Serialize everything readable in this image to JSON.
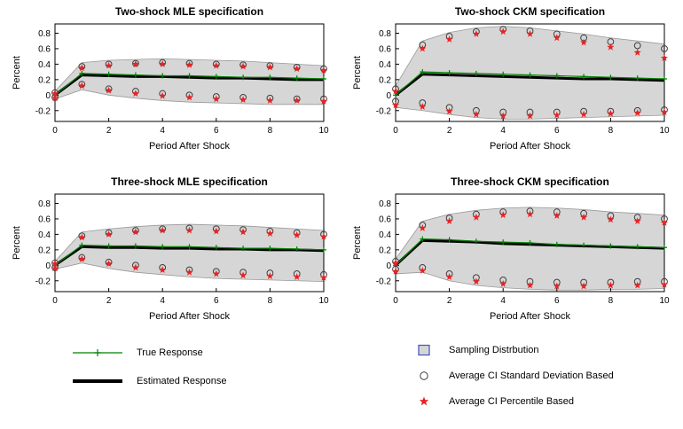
{
  "figure": {
    "xticks": [
      0,
      2,
      4,
      6,
      8,
      10
    ],
    "yticks": [
      -0.2,
      0,
      0.2,
      0.4,
      0.6,
      0.8
    ],
    "legend_position": "bottom"
  },
  "style": {
    "true_color": "#008000",
    "estimated_color": "#000000",
    "band_fill": "#d6d6d6",
    "band_edge": "#999999",
    "circle_color": "#404040",
    "star_color": "#e62325",
    "square_border": "#4050c0",
    "axis_color": "#000000"
  },
  "legend": {
    "true_response": "True Response",
    "estimated_response": "Estimated Response",
    "sampling_distribution": "Sampling Distrbution",
    "ci_sd": "Average CI Standard Deviation Based",
    "ci_pct": "Average CI Percentile Based"
  },
  "chart_data": [
    {
      "type": "line",
      "title": "Two-shock MLE specification",
      "xlabel": "Period After Shock",
      "ylabel": "Percent",
      "x": [
        0,
        1,
        2,
        3,
        4,
        5,
        6,
        7,
        8,
        9,
        10
      ],
      "xlim": [
        0,
        10
      ],
      "ylim": [
        -0.34,
        0.92
      ],
      "band": {
        "name": "Sampling Distribution",
        "upper": [
          0.05,
          0.42,
          0.45,
          0.46,
          0.47,
          0.46,
          0.45,
          0.44,
          0.42,
          0.4,
          0.38
        ],
        "lower": [
          -0.05,
          0.07,
          0.0,
          -0.04,
          -0.07,
          -0.09,
          -0.1,
          -0.11,
          -0.12,
          -0.12,
          -0.12
        ]
      },
      "series": [
        {
          "role": "true",
          "name": "True Response",
          "values": [
            0,
            0.28,
            0.27,
            0.26,
            0.25,
            0.25,
            0.24,
            0.23,
            0.23,
            0.22,
            0.21
          ]
        },
        {
          "role": "estimated",
          "name": "Estimated Response",
          "values": [
            0,
            0.26,
            0.25,
            0.24,
            0.24,
            0.23,
            0.22,
            0.22,
            0.21,
            0.2,
            0.2
          ]
        },
        {
          "role": "ci_sd_upper",
          "name": "Average CI Standard Deviation Based (upper)",
          "values": [
            0.03,
            0.37,
            0.4,
            0.41,
            0.42,
            0.41,
            0.4,
            0.39,
            0.38,
            0.36,
            0.34
          ]
        },
        {
          "role": "ci_sd_lower",
          "name": "Average CI Standard Deviation Based (lower)",
          "values": [
            -0.03,
            0.14,
            0.08,
            0.05,
            0.02,
            0.0,
            -0.02,
            -0.03,
            -0.04,
            -0.05,
            -0.05
          ]
        },
        {
          "role": "ci_pct_upper",
          "name": "Average CI Percentile Based (upper)",
          "values": [
            0.02,
            0.35,
            0.38,
            0.4,
            0.4,
            0.39,
            0.38,
            0.37,
            0.36,
            0.34,
            0.32
          ]
        },
        {
          "role": "ci_pct_lower",
          "name": "Average CI Percentile Based (lower)",
          "values": [
            -0.04,
            0.12,
            0.06,
            0.02,
            -0.01,
            -0.03,
            -0.05,
            -0.06,
            -0.07,
            -0.07,
            -0.08
          ]
        }
      ]
    },
    {
      "type": "line",
      "title": "Two-shock CKM specification",
      "xlabel": "Period After Shock",
      "ylabel": "Percent",
      "x": [
        0,
        1,
        2,
        3,
        4,
        5,
        6,
        7,
        8,
        9,
        10
      ],
      "xlim": [
        0,
        10
      ],
      "ylim": [
        -0.34,
        0.92
      ],
      "band": {
        "name": "Sampling Distribution",
        "upper": [
          0.12,
          0.7,
          0.81,
          0.87,
          0.89,
          0.87,
          0.83,
          0.79,
          0.74,
          0.7,
          0.66
        ],
        "lower": [
          -0.16,
          -0.2,
          -0.25,
          -0.29,
          -0.31,
          -0.31,
          -0.3,
          -0.29,
          -0.28,
          -0.27,
          -0.26
        ]
      },
      "series": [
        {
          "role": "true",
          "name": "True Response",
          "values": [
            0,
            0.3,
            0.29,
            0.28,
            0.27,
            0.26,
            0.25,
            0.24,
            0.23,
            0.22,
            0.21
          ]
        },
        {
          "role": "estimated",
          "name": "Estimated Response",
          "values": [
            0,
            0.27,
            0.26,
            0.25,
            0.24,
            0.23,
            0.22,
            0.21,
            0.21,
            0.2,
            0.19
          ]
        },
        {
          "role": "ci_sd_upper",
          "name": "Average CI Standard Deviation Based (upper)",
          "values": [
            0.08,
            0.65,
            0.76,
            0.82,
            0.85,
            0.83,
            0.79,
            0.74,
            0.69,
            0.64,
            0.6
          ]
        },
        {
          "role": "ci_sd_lower",
          "name": "Average CI Standard Deviation Based (lower)",
          "values": [
            -0.08,
            -0.1,
            -0.16,
            -0.2,
            -0.22,
            -0.22,
            -0.22,
            -0.21,
            -0.21,
            -0.2,
            -0.19
          ]
        },
        {
          "role": "ci_pct_upper",
          "name": "Average CI Percentile Based (upper)",
          "values": [
            0.05,
            0.6,
            0.72,
            0.79,
            0.82,
            0.79,
            0.74,
            0.68,
            0.62,
            0.55,
            0.48
          ]
        },
        {
          "role": "ci_pct_lower",
          "name": "Average CI Percentile Based (lower)",
          "values": [
            -0.13,
            -0.15,
            -0.21,
            -0.25,
            -0.27,
            -0.27,
            -0.26,
            -0.25,
            -0.24,
            -0.23,
            -0.22
          ]
        }
      ]
    },
    {
      "type": "line",
      "title": "Three-shock MLE specification",
      "xlabel": "Period After Shock",
      "ylabel": "Percent",
      "x": [
        0,
        1,
        2,
        3,
        4,
        5,
        6,
        7,
        8,
        9,
        10
      ],
      "xlim": [
        0,
        10
      ],
      "ylim": [
        -0.34,
        0.92
      ],
      "band": {
        "name": "Sampling Distribution",
        "upper": [
          0.05,
          0.43,
          0.47,
          0.5,
          0.52,
          0.53,
          0.52,
          0.51,
          0.49,
          0.47,
          0.45
        ],
        "lower": [
          -0.05,
          0.03,
          -0.04,
          -0.09,
          -0.12,
          -0.15,
          -0.17,
          -0.18,
          -0.19,
          -0.2,
          -0.21
        ]
      },
      "series": [
        {
          "role": "true",
          "name": "True Response",
          "values": [
            0,
            0.26,
            0.25,
            0.25,
            0.24,
            0.24,
            0.23,
            0.22,
            0.22,
            0.21,
            0.2
          ]
        },
        {
          "role": "estimated",
          "name": "Estimated Response",
          "values": [
            0,
            0.24,
            0.23,
            0.23,
            0.22,
            0.22,
            0.21,
            0.21,
            0.2,
            0.2,
            0.19
          ]
        },
        {
          "role": "ci_sd_upper",
          "name": "Average CI Standard Deviation Based (upper)",
          "values": [
            0.03,
            0.38,
            0.42,
            0.45,
            0.47,
            0.48,
            0.47,
            0.46,
            0.44,
            0.42,
            0.4
          ]
        },
        {
          "role": "ci_sd_lower",
          "name": "Average CI Standard Deviation Based (lower)",
          "values": [
            -0.03,
            0.1,
            0.04,
            0.0,
            -0.03,
            -0.06,
            -0.08,
            -0.09,
            -0.1,
            -0.11,
            -0.12
          ]
        },
        {
          "role": "ci_pct_upper",
          "name": "Average CI Percentile Based (upper)",
          "values": [
            0.02,
            0.36,
            0.4,
            0.43,
            0.45,
            0.45,
            0.44,
            0.43,
            0.41,
            0.39,
            0.37
          ]
        },
        {
          "role": "ci_pct_lower",
          "name": "Average CI Percentile Based (lower)",
          "values": [
            -0.04,
            0.08,
            0.02,
            -0.03,
            -0.06,
            -0.09,
            -0.11,
            -0.13,
            -0.14,
            -0.15,
            -0.16
          ]
        }
      ]
    },
    {
      "type": "line",
      "title": "Three-shock CKM specification",
      "xlabel": "Period After Shock",
      "ylabel": "Percent",
      "x": [
        0,
        1,
        2,
        3,
        4,
        5,
        6,
        7,
        8,
        9,
        10
      ],
      "xlim": [
        0,
        10
      ],
      "ylim": [
        -0.34,
        0.92
      ],
      "band": {
        "name": "Sampling Distribution",
        "upper": [
          0.08,
          0.57,
          0.66,
          0.71,
          0.74,
          0.75,
          0.74,
          0.72,
          0.69,
          0.67,
          0.65
        ],
        "lower": [
          -0.11,
          -0.09,
          -0.2,
          -0.26,
          -0.29,
          -0.31,
          -0.32,
          -0.32,
          -0.31,
          -0.31,
          -0.3
        ]
      },
      "series": [
        {
          "role": "true",
          "name": "True Response",
          "values": [
            0,
            0.34,
            0.33,
            0.31,
            0.3,
            0.29,
            0.27,
            0.26,
            0.25,
            0.24,
            0.23
          ]
        },
        {
          "role": "estimated",
          "name": "Estimated Response",
          "values": [
            0,
            0.32,
            0.31,
            0.3,
            0.28,
            0.27,
            0.26,
            0.25,
            0.24,
            0.23,
            0.22
          ]
        },
        {
          "role": "ci_sd_upper",
          "name": "Average CI Standard Deviation Based (upper)",
          "values": [
            0.05,
            0.52,
            0.61,
            0.66,
            0.69,
            0.7,
            0.69,
            0.67,
            0.64,
            0.62,
            0.6
          ]
        },
        {
          "role": "ci_sd_lower",
          "name": "Average CI Standard Deviation Based (lower)",
          "values": [
            -0.05,
            -0.03,
            -0.11,
            -0.16,
            -0.19,
            -0.21,
            -0.22,
            -0.22,
            -0.22,
            -0.21,
            -0.21
          ]
        },
        {
          "role": "ci_pct_upper",
          "name": "Average CI Percentile Based (upper)",
          "values": [
            0.03,
            0.48,
            0.57,
            0.62,
            0.65,
            0.66,
            0.64,
            0.62,
            0.59,
            0.57,
            0.55
          ]
        },
        {
          "role": "ci_pct_lower",
          "name": "Average CI Percentile Based (lower)",
          "values": [
            -0.08,
            -0.07,
            -0.15,
            -0.21,
            -0.24,
            -0.26,
            -0.27,
            -0.27,
            -0.26,
            -0.26,
            -0.25
          ]
        }
      ]
    }
  ]
}
